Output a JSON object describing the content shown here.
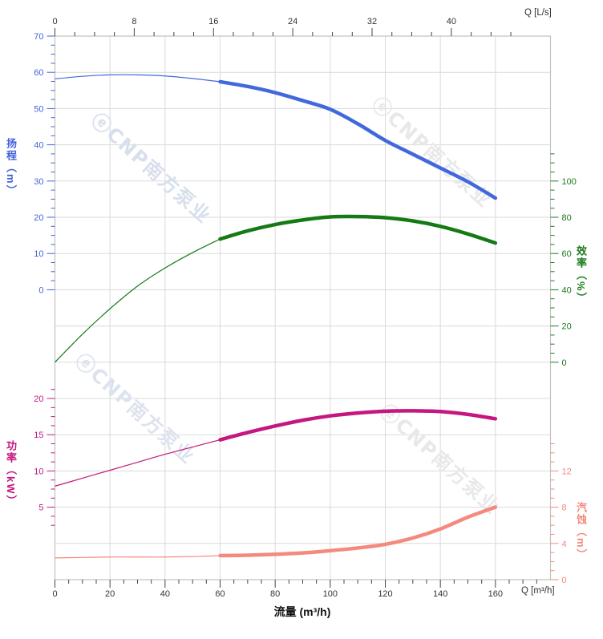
{
  "watermark": {
    "text": "ⓔCNP南方泵业"
  },
  "chart_data": {
    "type": "line",
    "title": "",
    "x": [
      0,
      10,
      20,
      30,
      40,
      50,
      60,
      70,
      80,
      90,
      100,
      110,
      120,
      130,
      140,
      150,
      160
    ],
    "x_unit": "m³/h",
    "thick_range": [
      60,
      160
    ],
    "grid": true,
    "series": [
      {
        "key": "head",
        "name": "扬程",
        "unit": "m",
        "color": "#4168dd",
        "values": [
          58.2,
          58.9,
          59.3,
          59.3,
          59.0,
          58.3,
          57.4,
          56.1,
          54.4,
          52.2,
          49.8,
          45.8,
          41.2,
          37.4,
          33.6,
          29.8,
          25.3
        ]
      },
      {
        "key": "efficiency",
        "name": "效率",
        "unit": "%",
        "color": "#157a15",
        "values": [
          0,
          15.5,
          29.5,
          42,
          52,
          60.5,
          68,
          72.5,
          76,
          78.5,
          80.2,
          80.4,
          79.8,
          78,
          75,
          70.8,
          65.8
        ]
      },
      {
        "key": "power",
        "name": "功率",
        "unit": "kW",
        "color": "#c4177f",
        "values": [
          7.9,
          9.0,
          10.1,
          11.2,
          12.3,
          13.3,
          14.3,
          15.3,
          16.2,
          17.0,
          17.6,
          18.0,
          18.25,
          18.3,
          18.2,
          17.8,
          17.2
        ]
      },
      {
        "key": "npsh",
        "name": "汽蚀",
        "unit": "m",
        "color": "#f5897d",
        "values": [
          2.4,
          2.45,
          2.5,
          2.5,
          2.5,
          2.55,
          2.65,
          2.7,
          2.8,
          2.95,
          3.2,
          3.5,
          3.9,
          4.6,
          5.6,
          6.9,
          8.0
        ]
      }
    ],
    "axes": {
      "flow_top": {
        "label": "Q [L/s]",
        "min": 0,
        "max": 50,
        "ticks": [
          0,
          8,
          16,
          24,
          32,
          40
        ],
        "minor_step": 2,
        "color": "#333333"
      },
      "flow_bottom": {
        "label": "Q [m³/h]",
        "title": "流量 (m³/h)",
        "min": 0,
        "max": 180,
        "ticks": [
          0,
          20,
          40,
          60,
          80,
          100,
          120,
          140,
          160
        ],
        "minor_step": 5,
        "color": "#333333"
      },
      "head": {
        "title": "扬程（m）",
        "min": 0,
        "max": 70,
        "ticks": [
          70,
          60,
          50,
          40,
          30,
          20,
          10,
          0
        ],
        "minor_step": 2.5,
        "color": "#4262d8"
      },
      "efficiency": {
        "title": "效率（%）",
        "min": 0,
        "max": 100,
        "ticks": [
          100,
          80,
          60,
          40,
          20,
          0
        ],
        "minor_step": 5,
        "color": "#1a7a1a"
      },
      "power": {
        "title": "功率（kW）",
        "min": 0,
        "max": 20,
        "ticks": [
          20,
          15,
          10,
          5
        ],
        "minor_step": 1.25,
        "color": "#c4177f"
      },
      "npsh": {
        "title": "汽蚀（m）",
        "min": 0,
        "max": 12,
        "ticks": [
          12,
          8,
          4,
          0
        ],
        "minor_step": 1,
        "color": "#f5897d"
      }
    }
  }
}
